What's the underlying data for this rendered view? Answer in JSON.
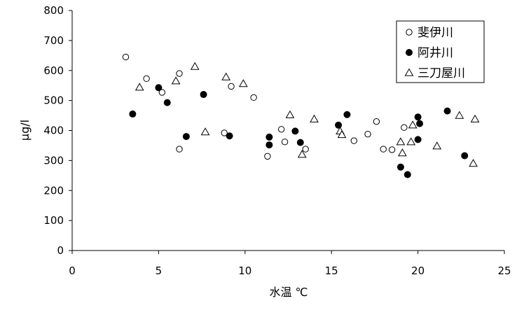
{
  "chart_data": {
    "type": "scatter",
    "title": "",
    "xlabel": "水温 ℃",
    "ylabel": "μg/l",
    "xlim": [
      0,
      25
    ],
    "ylim": [
      0,
      800
    ],
    "xticks": [
      0,
      5,
      10,
      15,
      20,
      25
    ],
    "yticks": [
      0,
      100,
      200,
      300,
      400,
      500,
      600,
      700,
      800
    ],
    "grid": false,
    "legend_position": "top-right",
    "series": [
      {
        "name": "斐伊川",
        "marker": "circle-open",
        "color": "#000000",
        "points": [
          [
            3.1,
            645
          ],
          [
            4.3,
            573
          ],
          [
            5.2,
            527
          ],
          [
            6.2,
            590
          ],
          [
            6.2,
            338
          ],
          [
            8.8,
            392
          ],
          [
            9.2,
            547
          ],
          [
            10.5,
            510
          ],
          [
            11.3,
            314
          ],
          [
            12.1,
            404
          ],
          [
            12.3,
            362
          ],
          [
            13.5,
            338
          ],
          [
            16.3,
            366
          ],
          [
            17.1,
            388
          ],
          [
            17.6,
            430
          ],
          [
            18.0,
            338
          ],
          [
            18.5,
            336
          ],
          [
            19.2,
            410
          ]
        ]
      },
      {
        "name": "阿井川",
        "marker": "circle-filled",
        "color": "#000000",
        "points": [
          [
            3.5,
            455
          ],
          [
            5.0,
            543
          ],
          [
            5.5,
            493
          ],
          [
            6.6,
            380
          ],
          [
            7.6,
            520
          ],
          [
            9.1,
            382
          ],
          [
            11.4,
            378
          ],
          [
            11.4,
            352
          ],
          [
            12.9,
            398
          ],
          [
            13.2,
            360
          ],
          [
            15.4,
            418
          ],
          [
            15.9,
            453
          ],
          [
            19.0,
            278
          ],
          [
            19.4,
            253
          ],
          [
            20.0,
            370
          ],
          [
            20.0,
            445
          ],
          [
            20.1,
            423
          ],
          [
            21.7,
            465
          ],
          [
            22.7,
            316
          ]
        ]
      },
      {
        "name": "三刀屋川",
        "marker": "triangle-open",
        "color": "#000000",
        "points": [
          [
            3.9,
            544
          ],
          [
            6.0,
            565
          ],
          [
            7.1,
            613
          ],
          [
            7.7,
            395
          ],
          [
            8.9,
            578
          ],
          [
            9.9,
            556
          ],
          [
            12.6,
            452
          ],
          [
            13.3,
            320
          ],
          [
            14.0,
            438
          ],
          [
            15.5,
            398
          ],
          [
            15.6,
            386
          ],
          [
            19.0,
            362
          ],
          [
            19.1,
            325
          ],
          [
            19.6,
            362
          ],
          [
            19.7,
            418
          ],
          [
            21.1,
            348
          ],
          [
            22.4,
            450
          ],
          [
            23.2,
            290
          ],
          [
            23.3,
            438
          ]
        ]
      }
    ]
  }
}
